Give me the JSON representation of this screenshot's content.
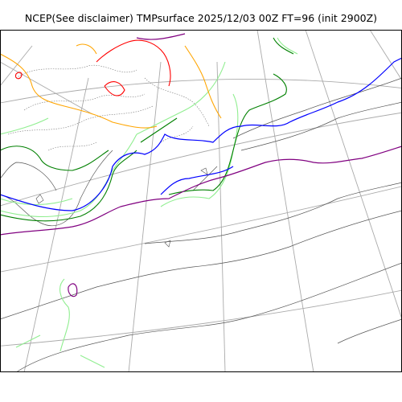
{
  "figure": {
    "title": "NCEP(See disclaimer) TMPsurface 2025/12/03 00Z FT=96 (init 2900Z)"
  },
  "map": {
    "projection": "polar-stereographic",
    "graticule_color": "#aaaaaa",
    "contour_colors": {
      "default": "#555555",
      "light_green": "#90ee90",
      "green": "#008000",
      "blue": "#0000ff",
      "purple": "#800080",
      "red": "#ff0000",
      "orange": "#ffa500"
    }
  }
}
